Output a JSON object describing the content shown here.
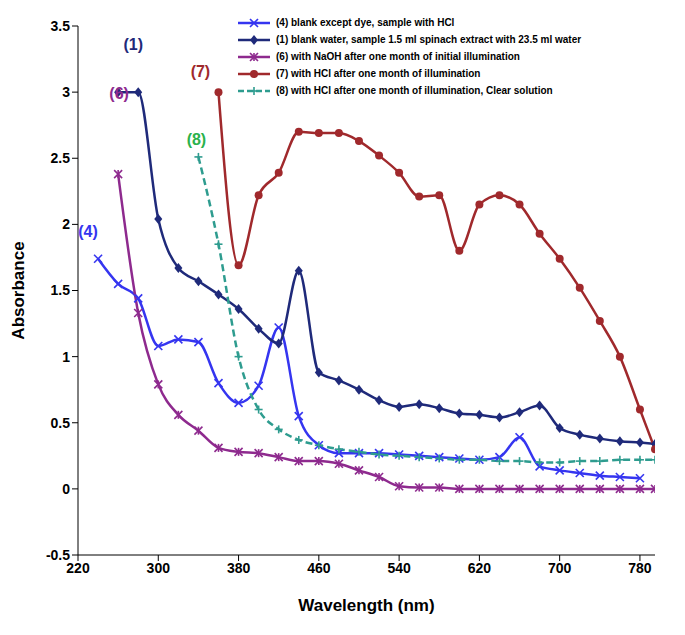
{
  "chart_data": {
    "type": "line",
    "x_label": "Wavelength (nm)",
    "y_label": "Absorbance",
    "grid": false,
    "legend": "upper right",
    "xlim": [
      220,
      795
    ],
    "xticks": [
      220,
      300,
      380,
      460,
      540,
      620,
      700,
      780
    ],
    "ylim": [
      -0.5,
      3.5
    ],
    "yticks": [
      -0.5,
      0,
      0.5,
      1,
      1.5,
      2,
      2.5,
      3,
      3.5
    ],
    "x": [
      240,
      260,
      280,
      300,
      320,
      340,
      360,
      380,
      400,
      420,
      440,
      460,
      480,
      500,
      520,
      540,
      560,
      580,
      600,
      620,
      640,
      660,
      680,
      700,
      720,
      740,
      760,
      780,
      795
    ],
    "series": [
      {
        "name": "(4) blank except dye, sample with HCl",
        "color": "#3535F0",
        "marker": "x",
        "line_style": "solid",
        "values": [
          1.74,
          1.55,
          1.44,
          1.08,
          1.13,
          1.11,
          0.8,
          0.65,
          0.78,
          1.22,
          0.55,
          0.33,
          0.27,
          0.27,
          0.27,
          0.26,
          0.25,
          0.24,
          0.23,
          0.22,
          0.24,
          0.39,
          0.17,
          0.14,
          0.12,
          0.1,
          0.09,
          0.08,
          null
        ]
      },
      {
        "name": "(1) blank water, sample 1.5 ml spinach extract with 23.5 ml water",
        "color": "#1F2A7A",
        "marker": "diamond",
        "line_style": "solid",
        "values": [
          null,
          3.0,
          3.0,
          2.04,
          1.67,
          1.57,
          1.47,
          1.36,
          1.21,
          1.1,
          1.65,
          0.88,
          0.82,
          0.75,
          0.67,
          0.62,
          0.64,
          0.61,
          0.57,
          0.56,
          0.54,
          0.58,
          0.63,
          0.46,
          0.41,
          0.38,
          0.36,
          0.35,
          0.34
        ]
      },
      {
        "name": "(6) with NaOH after one month of initial illumination",
        "color": "#8E2A8E",
        "marker": "star",
        "line_style": "solid",
        "values": [
          null,
          2.38,
          1.33,
          0.79,
          0.56,
          0.44,
          0.31,
          0.28,
          0.27,
          0.24,
          0.21,
          0.21,
          0.19,
          0.14,
          0.09,
          0.02,
          0.01,
          0.01,
          0,
          0,
          0,
          0,
          0,
          0,
          0,
          0,
          0,
          0,
          0
        ]
      },
      {
        "name": "(7) with HCl after one month of illumination",
        "color": "#A0292C",
        "marker": "circle",
        "line_style": "solid",
        "values": [
          null,
          null,
          null,
          null,
          null,
          null,
          3.0,
          1.69,
          2.22,
          2.39,
          2.7,
          2.69,
          2.69,
          2.63,
          2.52,
          2.39,
          2.21,
          2.22,
          1.8,
          2.15,
          2.22,
          2.15,
          1.93,
          1.74,
          1.52,
          1.27,
          1.0,
          0.6,
          0.3
        ]
      },
      {
        "name": "(8) with HCl after one month of illumination, Clear solution",
        "color": "#2E9C8F",
        "marker": "plus",
        "line_style": "dashed",
        "values": [
          null,
          null,
          null,
          null,
          null,
          2.51,
          1.85,
          1.0,
          0.6,
          0.45,
          0.37,
          0.33,
          0.3,
          0.28,
          0.26,
          0.25,
          0.24,
          0.23,
          0.22,
          0.22,
          0.21,
          0.21,
          0.2,
          0.2,
          0.21,
          0.21,
          0.22,
          0.22,
          0.22
        ]
      }
    ],
    "annotations": [
      {
        "text": "(1)",
        "x": 275,
        "y": 3.36,
        "color": "#1F2A7A"
      },
      {
        "text": "(4)",
        "x": 230,
        "y": 1.95,
        "color": "#3535F0"
      },
      {
        "text": "(6)",
        "x": 261,
        "y": 2.99,
        "color": "#8E2A8E"
      },
      {
        "text": "(7)",
        "x": 342,
        "y": 3.16,
        "color": "#A0292C"
      },
      {
        "text": "(8)",
        "x": 338,
        "y": 2.64,
        "color": "#2BB24C"
      }
    ]
  }
}
